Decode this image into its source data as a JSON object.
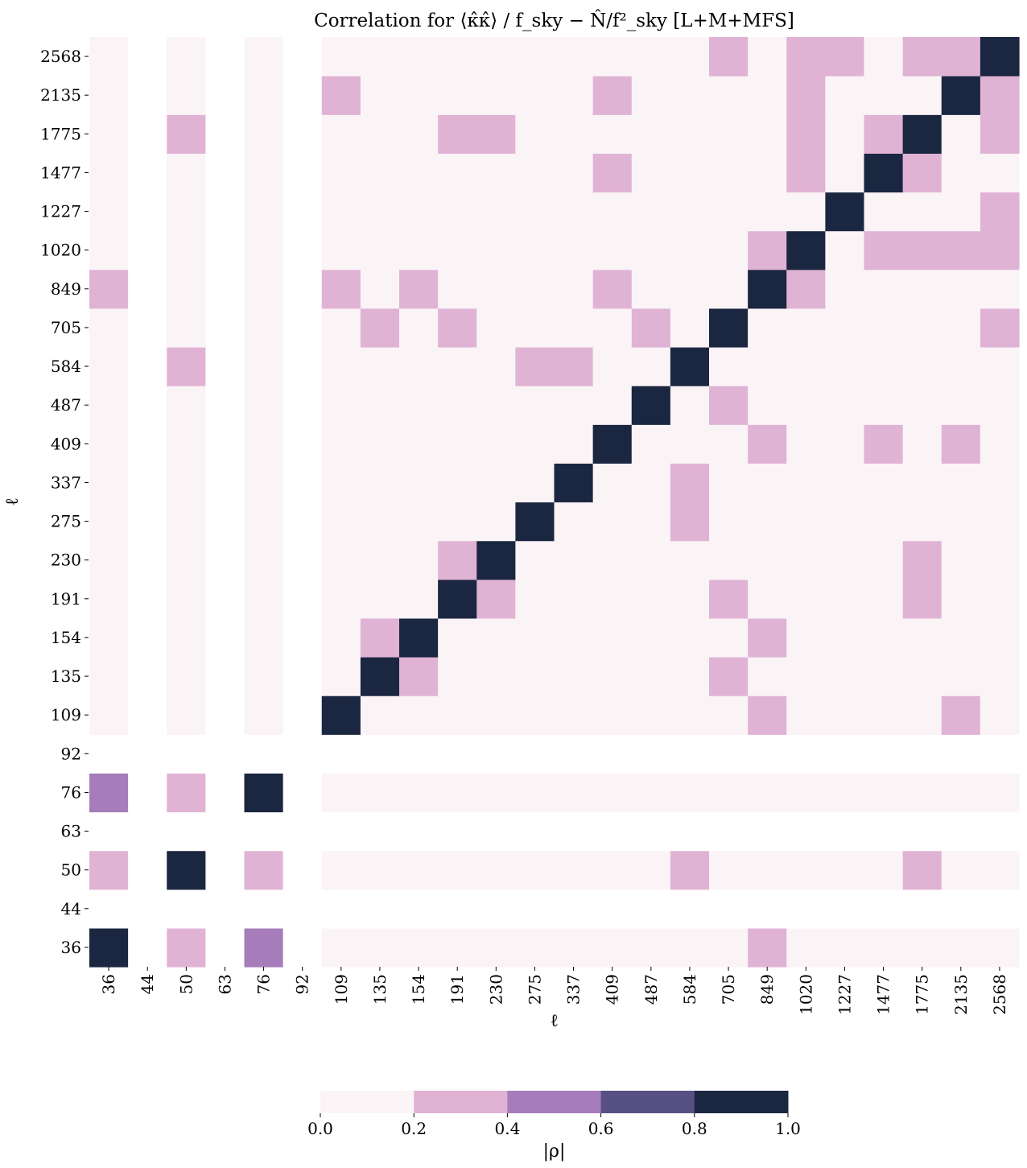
{
  "chart_data": {
    "type": "heatmap",
    "title": "Correlation for ⟨κ̂κ̂⟩ / f_sky − N̂/f²_sky [L+M+MFS]",
    "xlabel": "ℓ",
    "ylabel": "ℓ",
    "ell_bins": [
      "36",
      "44",
      "50",
      "63",
      "76",
      "92",
      "109",
      "135",
      "154",
      "191",
      "230",
      "275",
      "337",
      "409",
      "487",
      "584",
      "705",
      "849",
      "1020",
      "1227",
      "1477",
      "1775",
      "2135",
      "2568"
    ],
    "y_order": "bottom-to-top",
    "masked_bins": [
      "44",
      "63",
      "92"
    ],
    "value_encoding": "binned |rho| levels; each cell listed as [x_bin, y_bin, |rho|]; unlisted unmasked cells are in 0.0-0.2",
    "high_cells": [
      [
        "36",
        "36",
        0.9
      ],
      [
        "50",
        "36",
        0.3
      ],
      [
        "76",
        "36",
        0.5
      ],
      [
        "849",
        "36",
        0.3
      ],
      [
        "36",
        "50",
        0.3
      ],
      [
        "50",
        "50",
        0.9
      ],
      [
        "76",
        "50",
        0.3
      ],
      [
        "584",
        "50",
        0.3
      ],
      [
        "1775",
        "50",
        0.3
      ],
      [
        "36",
        "76",
        0.5
      ],
      [
        "50",
        "76",
        0.3
      ],
      [
        "76",
        "76",
        0.9
      ],
      [
        "109",
        "109",
        0.9
      ],
      [
        "849",
        "109",
        0.3
      ],
      [
        "2135",
        "109",
        0.3
      ],
      [
        "135",
        "135",
        0.9
      ],
      [
        "154",
        "135",
        0.3
      ],
      [
        "705",
        "135",
        0.3
      ],
      [
        "135",
        "154",
        0.3
      ],
      [
        "154",
        "154",
        0.9
      ],
      [
        "849",
        "154",
        0.3
      ],
      [
        "191",
        "191",
        0.9
      ],
      [
        "230",
        "191",
        0.3
      ],
      [
        "705",
        "191",
        0.3
      ],
      [
        "1775",
        "191",
        0.3
      ],
      [
        "191",
        "230",
        0.3
      ],
      [
        "230",
        "230",
        0.9
      ],
      [
        "1775",
        "230",
        0.3
      ],
      [
        "275",
        "275",
        0.9
      ],
      [
        "584",
        "275",
        0.3
      ],
      [
        "337",
        "337",
        0.9
      ],
      [
        "584",
        "337",
        0.3
      ],
      [
        "409",
        "409",
        0.9
      ],
      [
        "849",
        "409",
        0.3
      ],
      [
        "1477",
        "409",
        0.3
      ],
      [
        "2135",
        "409",
        0.3
      ],
      [
        "487",
        "487",
        0.9
      ],
      [
        "705",
        "487",
        0.3
      ],
      [
        "50",
        "584",
        0.3
      ],
      [
        "275",
        "584",
        0.3
      ],
      [
        "337",
        "584",
        0.3
      ],
      [
        "584",
        "584",
        0.9
      ],
      [
        "135",
        "705",
        0.3
      ],
      [
        "191",
        "705",
        0.3
      ],
      [
        "487",
        "705",
        0.3
      ],
      [
        "705",
        "705",
        0.9
      ],
      [
        "2568",
        "705",
        0.3
      ],
      [
        "36",
        "849",
        0.3
      ],
      [
        "109",
        "849",
        0.3
      ],
      [
        "154",
        "849",
        0.3
      ],
      [
        "409",
        "849",
        0.3
      ],
      [
        "849",
        "849",
        0.9
      ],
      [
        "1020",
        "849",
        0.3
      ],
      [
        "849",
        "1020",
        0.3
      ],
      [
        "1020",
        "1020",
        0.9
      ],
      [
        "1477",
        "1020",
        0.3
      ],
      [
        "1775",
        "1020",
        0.3
      ],
      [
        "2135",
        "1020",
        0.3
      ],
      [
        "2568",
        "1020",
        0.3
      ],
      [
        "1227",
        "1227",
        0.9
      ],
      [
        "2568",
        "1227",
        0.3
      ],
      [
        "409",
        "1477",
        0.3
      ],
      [
        "1020",
        "1477",
        0.3
      ],
      [
        "1477",
        "1477",
        0.9
      ],
      [
        "1775",
        "1477",
        0.3
      ],
      [
        "50",
        "1775",
        0.3
      ],
      [
        "191",
        "1775",
        0.3
      ],
      [
        "230",
        "1775",
        0.3
      ],
      [
        "1020",
        "1775",
        0.3
      ],
      [
        "1477",
        "1775",
        0.3
      ],
      [
        "1775",
        "1775",
        0.9
      ],
      [
        "2568",
        "1775",
        0.3
      ],
      [
        "109",
        "2135",
        0.3
      ],
      [
        "409",
        "2135",
        0.3
      ],
      [
        "1020",
        "2135",
        0.3
      ],
      [
        "2135",
        "2135",
        0.9
      ],
      [
        "2568",
        "2135",
        0.3
      ],
      [
        "705",
        "2568",
        0.3
      ],
      [
        "1020",
        "2568",
        0.3
      ],
      [
        "1227",
        "2568",
        0.3
      ],
      [
        "1775",
        "2568",
        0.3
      ],
      [
        "2135",
        "2568",
        0.3
      ],
      [
        "2568",
        "2568",
        0.9
      ]
    ],
    "colorbar": {
      "label": "|ρ|",
      "ticks": [
        "0.0",
        "0.2",
        "0.4",
        "0.6",
        "0.8",
        "1.0"
      ],
      "bounds": [
        0.0,
        0.2,
        0.4,
        0.6,
        0.8,
        1.0
      ],
      "colors": [
        "#fbf4f7",
        "#e0b3d5",
        "#a67cba",
        "#575085",
        "#1b2640"
      ]
    },
    "mask_color": "#ffffff",
    "legend_placement": "bottom-center colorbar",
    "grid": false
  }
}
